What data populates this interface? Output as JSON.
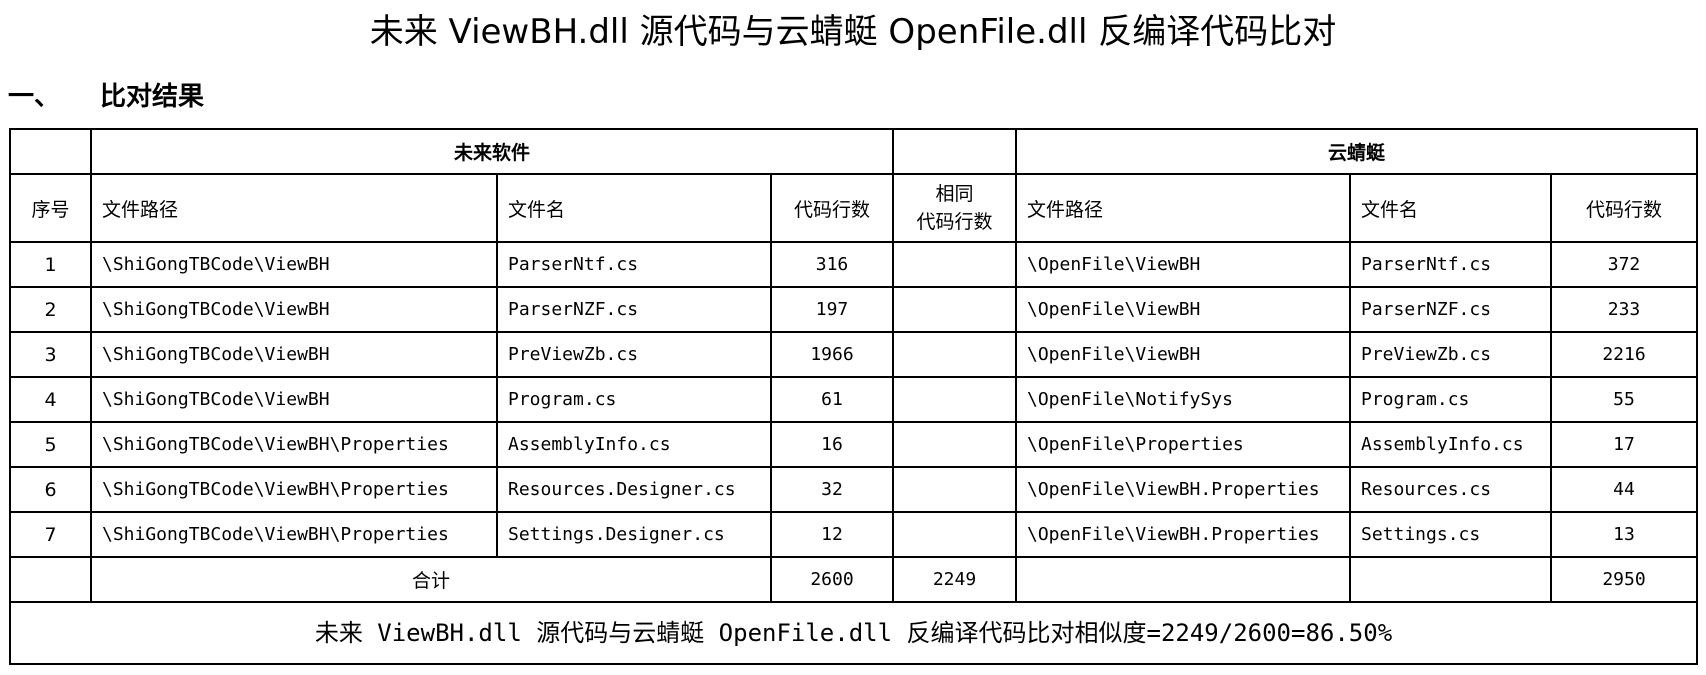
{
  "title": "未来 ViewBH.dll 源代码与云蜻蜓 OpenFile.dll 反编译代码比对",
  "section": {
    "number": "一、",
    "label": "比对结果"
  },
  "table": {
    "group_left": "未来软件",
    "group_right": "云蜻蜓",
    "headers": {
      "index": "序号",
      "path": "文件路径",
      "name": "文件名",
      "lines": "代码行数",
      "same": "相同\n代码行数",
      "path2": "文件路径",
      "name2": "文件名",
      "lines2": "代码行数"
    },
    "rows": [
      {
        "i": "1",
        "p1": "\\ShiGongTBCode\\ViewBH",
        "n1": "ParserNtf.cs",
        "l1": "316",
        "p2": "\\OpenFile\\ViewBH",
        "n2": "ParserNtf.cs",
        "l2": "372"
      },
      {
        "i": "2",
        "p1": "\\ShiGongTBCode\\ViewBH",
        "n1": "ParserNZF.cs",
        "l1": "197",
        "p2": "\\OpenFile\\ViewBH",
        "n2": "ParserNZF.cs",
        "l2": "233"
      },
      {
        "i": "3",
        "p1": "\\ShiGongTBCode\\ViewBH",
        "n1": "PreViewZb.cs",
        "l1": "1966",
        "p2": "\\OpenFile\\ViewBH",
        "n2": "PreViewZb.cs",
        "l2": "2216"
      },
      {
        "i": "4",
        "p1": "\\ShiGongTBCode\\ViewBH",
        "n1": "Program.cs",
        "l1": "61",
        "p2": "\\OpenFile\\NotifySys",
        "n2": "Program.cs",
        "l2": "55"
      },
      {
        "i": "5",
        "p1": "\\ShiGongTBCode\\ViewBH\\Properties",
        "n1": "AssemblyInfo.cs",
        "l1": "16",
        "p2": "\\OpenFile\\Properties",
        "n2": "AssemblyInfo.cs",
        "l2": "17"
      },
      {
        "i": "6",
        "p1": "\\ShiGongTBCode\\ViewBH\\Properties",
        "n1": "Resources.Designer.cs",
        "l1": "32",
        "p2": "\\OpenFile\\ViewBH.Properties",
        "n2": "Resources.cs",
        "l2": "44"
      },
      {
        "i": "7",
        "p1": "\\ShiGongTBCode\\ViewBH\\Properties",
        "n1": "Settings.Designer.cs",
        "l1": "12",
        "p2": "\\OpenFile\\ViewBH.Properties",
        "n2": "Settings.cs",
        "l2": "13"
      }
    ],
    "total": {
      "label": "合计",
      "l1": "2600",
      "same": "2249",
      "l2": "2950"
    }
  },
  "summary": "未来 ViewBH.dll 源代码与云蜻蜓 OpenFile.dll 反编译代码比对相似度=2249/2600=86.50%"
}
